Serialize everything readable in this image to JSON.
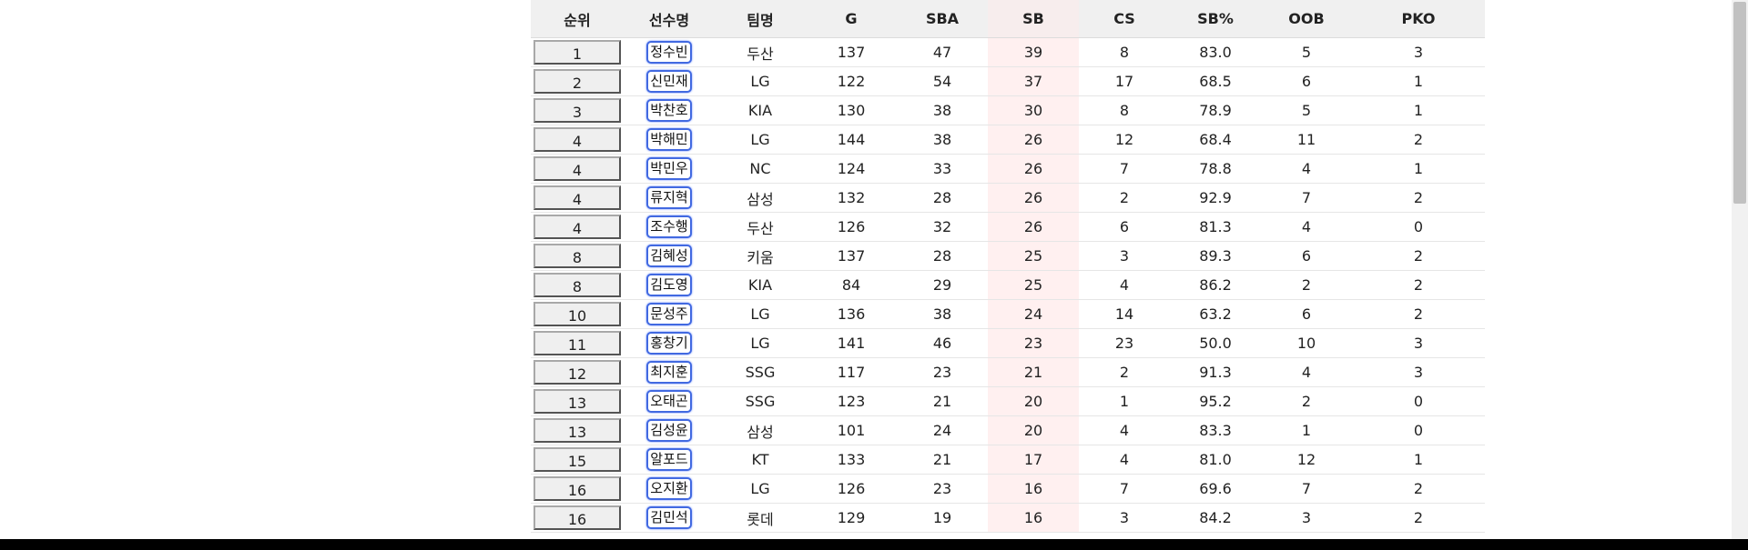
{
  "table": {
    "headers": [
      "순위",
      "선수명",
      "팀명",
      "G",
      "SBA",
      "SB",
      "CS",
      "SB%",
      "OOB",
      "PKO"
    ],
    "rows": [
      {
        "rank": "1",
        "name": "정수빈",
        "team": "두산",
        "g": "137",
        "sba": "47",
        "sb": "39",
        "cs": "8",
        "sbp": "83.0",
        "oob": "5",
        "pko": "3"
      },
      {
        "rank": "2",
        "name": "신민재",
        "team": "LG",
        "g": "122",
        "sba": "54",
        "sb": "37",
        "cs": "17",
        "sbp": "68.5",
        "oob": "6",
        "pko": "1"
      },
      {
        "rank": "3",
        "name": "박찬호",
        "team": "KIA",
        "g": "130",
        "sba": "38",
        "sb": "30",
        "cs": "8",
        "sbp": "78.9",
        "oob": "5",
        "pko": "1"
      },
      {
        "rank": "4",
        "name": "박해민",
        "team": "LG",
        "g": "144",
        "sba": "38",
        "sb": "26",
        "cs": "12",
        "sbp": "68.4",
        "oob": "11",
        "pko": "2"
      },
      {
        "rank": "4",
        "name": "박민우",
        "team": "NC",
        "g": "124",
        "sba": "33",
        "sb": "26",
        "cs": "7",
        "sbp": "78.8",
        "oob": "4",
        "pko": "1"
      },
      {
        "rank": "4",
        "name": "류지혁",
        "team": "삼성",
        "g": "132",
        "sba": "28",
        "sb": "26",
        "cs": "2",
        "sbp": "92.9",
        "oob": "7",
        "pko": "2"
      },
      {
        "rank": "4",
        "name": "조수행",
        "team": "두산",
        "g": "126",
        "sba": "32",
        "sb": "26",
        "cs": "6",
        "sbp": "81.3",
        "oob": "4",
        "pko": "0"
      },
      {
        "rank": "8",
        "name": "김혜성",
        "team": "키움",
        "g": "137",
        "sba": "28",
        "sb": "25",
        "cs": "3",
        "sbp": "89.3",
        "oob": "6",
        "pko": "2"
      },
      {
        "rank": "8",
        "name": "김도영",
        "team": "KIA",
        "g": "84",
        "sba": "29",
        "sb": "25",
        "cs": "4",
        "sbp": "86.2",
        "oob": "2",
        "pko": "2"
      },
      {
        "rank": "10",
        "name": "문성주",
        "team": "LG",
        "g": "136",
        "sba": "38",
        "sb": "24",
        "cs": "14",
        "sbp": "63.2",
        "oob": "6",
        "pko": "2"
      },
      {
        "rank": "11",
        "name": "홍창기",
        "team": "LG",
        "g": "141",
        "sba": "46",
        "sb": "23",
        "cs": "23",
        "sbp": "50.0",
        "oob": "10",
        "pko": "3"
      },
      {
        "rank": "12",
        "name": "최지훈",
        "team": "SSG",
        "g": "117",
        "sba": "23",
        "sb": "21",
        "cs": "2",
        "sbp": "91.3",
        "oob": "4",
        "pko": "3"
      },
      {
        "rank": "13",
        "name": "오태곤",
        "team": "SSG",
        "g": "123",
        "sba": "21",
        "sb": "20",
        "cs": "1",
        "sbp": "95.2",
        "oob": "2",
        "pko": "0"
      },
      {
        "rank": "13",
        "name": "김성윤",
        "team": "삼성",
        "g": "101",
        "sba": "24",
        "sb": "20",
        "cs": "4",
        "sbp": "83.3",
        "oob": "1",
        "pko": "0"
      },
      {
        "rank": "15",
        "name": "알포드",
        "team": "KT",
        "g": "133",
        "sba": "21",
        "sb": "17",
        "cs": "4",
        "sbp": "81.0",
        "oob": "12",
        "pko": "1"
      },
      {
        "rank": "16",
        "name": "오지환",
        "team": "LG",
        "g": "126",
        "sba": "23",
        "sb": "16",
        "cs": "7",
        "sbp": "69.6",
        "oob": "7",
        "pko": "2"
      },
      {
        "rank": "16",
        "name": "김민석",
        "team": "롯데",
        "g": "129",
        "sba": "19",
        "sb": "16",
        "cs": "3",
        "sbp": "84.2",
        "oob": "3",
        "pko": "2"
      }
    ]
  },
  "colors": {
    "header_bg": "#f0f0f0",
    "sb_column_highlight": "#fff0f0",
    "name_link_border": "#4169e1",
    "rank_button_bg": "#efefef"
  }
}
